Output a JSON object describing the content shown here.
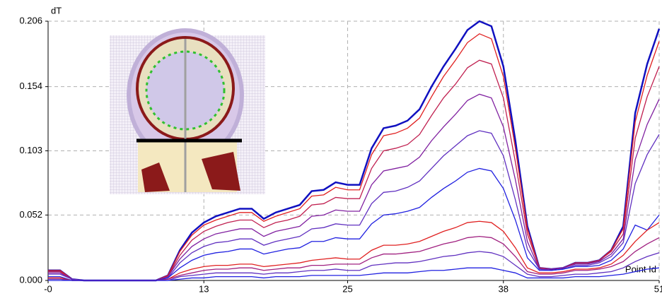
{
  "chart_data": {
    "type": "line",
    "y_label": "dT",
    "x_label": "Point Id",
    "x": [
      0,
      1,
      2,
      3,
      4,
      5,
      6,
      7,
      8,
      9,
      10,
      11,
      12,
      13,
      14,
      15,
      16,
      17,
      18,
      19,
      20,
      21,
      22,
      23,
      24,
      25,
      26,
      27,
      28,
      29,
      30,
      31,
      32,
      33,
      34,
      35,
      36,
      37,
      38,
      39,
      40,
      41,
      42,
      43,
      44,
      45,
      46,
      47,
      48,
      49,
      50,
      51
    ],
    "xlim": [
      0,
      51
    ],
    "xticks": [
      {
        "value": 0,
        "label": "-0"
      },
      13,
      25,
      38,
      51
    ],
    "ylim": [
      0,
      0.206
    ],
    "yticks": [
      {
        "value": 0,
        "label": "0.000"
      },
      0.052,
      0.103,
      0.154,
      0.206
    ],
    "grid": true,
    "series": [
      {
        "color": "#1010c0",
        "values": [
          0.008,
          0.008,
          0.001,
          0,
          0,
          0,
          0,
          0,
          0,
          0,
          0.004,
          0.024,
          0.038,
          0.046,
          0.051,
          0.054,
          0.057,
          0.057,
          0.049,
          0.054,
          0.057,
          0.06,
          0.071,
          0.072,
          0.078,
          0.076,
          0.076,
          0.105,
          0.121,
          0.123,
          0.127,
          0.136,
          0.154,
          0.17,
          0.184,
          0.199,
          0.206,
          0.202,
          0.17,
          0.111,
          0.043,
          0.01,
          0.009,
          0.01,
          0.014,
          0.014,
          0.016,
          0.024,
          0.043,
          0.133,
          0.172,
          0.2
        ]
      },
      {
        "color": "#e02020",
        "values": [
          0.008,
          0.008,
          0.001,
          0,
          0,
          0,
          0,
          0,
          0,
          0,
          0.004,
          0.023,
          0.036,
          0.044,
          0.048,
          0.051,
          0.054,
          0.054,
          0.047,
          0.051,
          0.054,
          0.057,
          0.067,
          0.068,
          0.074,
          0.072,
          0.072,
          0.1,
          0.115,
          0.117,
          0.121,
          0.129,
          0.146,
          0.162,
          0.175,
          0.189,
          0.196,
          0.192,
          0.162,
          0.105,
          0.041,
          0.01,
          0.009,
          0.01,
          0.014,
          0.014,
          0.016,
          0.024,
          0.041,
          0.126,
          0.163,
          0.19
        ]
      },
      {
        "color": "#c02050",
        "values": [
          0.007,
          0.007,
          0.001,
          0,
          0,
          0,
          0,
          0,
          0,
          0,
          0.003,
          0.02,
          0.032,
          0.039,
          0.043,
          0.046,
          0.048,
          0.048,
          0.042,
          0.046,
          0.048,
          0.051,
          0.06,
          0.061,
          0.066,
          0.065,
          0.065,
          0.089,
          0.103,
          0.105,
          0.108,
          0.116,
          0.131,
          0.145,
          0.156,
          0.169,
          0.175,
          0.172,
          0.145,
          0.094,
          0.037,
          0.01,
          0.009,
          0.01,
          0.014,
          0.014,
          0.016,
          0.023,
          0.037,
          0.113,
          0.146,
          0.17
        ]
      },
      {
        "color": "#8020a0",
        "values": [
          0.006,
          0.006,
          0.001,
          0,
          0,
          0,
          0,
          0,
          0,
          0,
          0.003,
          0.017,
          0.027,
          0.033,
          0.037,
          0.039,
          0.041,
          0.041,
          0.035,
          0.039,
          0.041,
          0.043,
          0.051,
          0.052,
          0.056,
          0.055,
          0.055,
          0.076,
          0.087,
          0.089,
          0.091,
          0.098,
          0.111,
          0.122,
          0.132,
          0.143,
          0.148,
          0.145,
          0.122,
          0.08,
          0.031,
          0.009,
          0.009,
          0.01,
          0.013,
          0.013,
          0.015,
          0.021,
          0.033,
          0.096,
          0.124,
          0.144
        ]
      },
      {
        "color": "#6030c0",
        "values": [
          0.005,
          0.005,
          0.001,
          0,
          0,
          0,
          0,
          0,
          0,
          0,
          0.002,
          0.014,
          0.022,
          0.027,
          0.03,
          0.031,
          0.033,
          0.033,
          0.028,
          0.031,
          0.033,
          0.035,
          0.041,
          0.042,
          0.045,
          0.044,
          0.044,
          0.061,
          0.07,
          0.071,
          0.074,
          0.079,
          0.089,
          0.099,
          0.107,
          0.115,
          0.119,
          0.117,
          0.099,
          0.064,
          0.025,
          0.009,
          0.008,
          0.009,
          0.012,
          0.012,
          0.014,
          0.019,
          0.03,
          0.077,
          0.1,
          0.116
        ]
      },
      {
        "color": "#2020e0",
        "values": [
          0.003,
          0.003,
          0,
          0,
          0,
          0,
          0,
          0,
          0,
          0,
          0.002,
          0.01,
          0.016,
          0.02,
          0.022,
          0.023,
          0.025,
          0.025,
          0.021,
          0.023,
          0.025,
          0.026,
          0.031,
          0.031,
          0.034,
          0.033,
          0.033,
          0.045,
          0.052,
          0.053,
          0.055,
          0.058,
          0.066,
          0.073,
          0.079,
          0.086,
          0.089,
          0.087,
          0.073,
          0.048,
          0.018,
          0.008,
          0.008,
          0.009,
          0.011,
          0.011,
          0.012,
          0.016,
          0.025,
          0.044,
          0.04,
          0.052
        ]
      },
      {
        "color": "#e02020",
        "values": [
          0.002,
          0.002,
          0,
          0,
          0,
          0,
          0,
          0,
          0,
          0,
          0.001,
          0.006,
          0.009,
          0.011,
          0.012,
          0.012,
          0.013,
          0.013,
          0.011,
          0.012,
          0.013,
          0.014,
          0.016,
          0.017,
          0.018,
          0.017,
          0.017,
          0.024,
          0.028,
          0.028,
          0.029,
          0.031,
          0.035,
          0.039,
          0.042,
          0.046,
          0.047,
          0.046,
          0.039,
          0.026,
          0.01,
          0.006,
          0.006,
          0.007,
          0.009,
          0.009,
          0.01,
          0.013,
          0.02,
          0.031,
          0.04,
          0.046
        ]
      },
      {
        "color": "#a02080",
        "values": [
          0.001,
          0.001,
          0,
          0,
          0,
          0,
          0,
          0,
          0,
          0,
          0.001,
          0.004,
          0.006,
          0.008,
          0.009,
          0.009,
          0.01,
          0.01,
          0.008,
          0.009,
          0.01,
          0.01,
          0.012,
          0.012,
          0.013,
          0.013,
          0.013,
          0.018,
          0.021,
          0.021,
          0.022,
          0.023,
          0.026,
          0.029,
          0.031,
          0.034,
          0.035,
          0.034,
          0.029,
          0.019,
          0.007,
          0.005,
          0.005,
          0.006,
          0.008,
          0.008,
          0.009,
          0.011,
          0.015,
          0.023,
          0.029,
          0.034
        ]
      },
      {
        "color": "#6030c0",
        "values": [
          0.001,
          0.001,
          0,
          0,
          0,
          0,
          0,
          0,
          0,
          0,
          0,
          0.003,
          0.004,
          0.005,
          0.006,
          0.006,
          0.006,
          0.006,
          0.005,
          0.006,
          0.006,
          0.007,
          0.008,
          0.008,
          0.009,
          0.008,
          0.008,
          0.012,
          0.013,
          0.014,
          0.014,
          0.015,
          0.017,
          0.019,
          0.02,
          0.022,
          0.023,
          0.022,
          0.019,
          0.012,
          0.005,
          0.003,
          0.003,
          0.004,
          0.005,
          0.005,
          0.006,
          0.007,
          0.01,
          0.015,
          0.019,
          0.022
        ]
      },
      {
        "color": "#2020e0",
        "values": [
          0,
          0,
          0,
          0,
          0,
          0,
          0,
          0,
          0,
          0,
          0,
          0.001,
          0.002,
          0.002,
          0.003,
          0.003,
          0.003,
          0.003,
          0.002,
          0.003,
          0.003,
          0.003,
          0.004,
          0.004,
          0.004,
          0.004,
          0.004,
          0.005,
          0.006,
          0.006,
          0.006,
          0.007,
          0.008,
          0.008,
          0.009,
          0.01,
          0.01,
          0.01,
          0.008,
          0.006,
          0.002,
          0.002,
          0.002,
          0.002,
          0.003,
          0.003,
          0.003,
          0.004,
          0.005,
          0.007,
          0.009,
          0.01
        ]
      }
    ]
  }
}
